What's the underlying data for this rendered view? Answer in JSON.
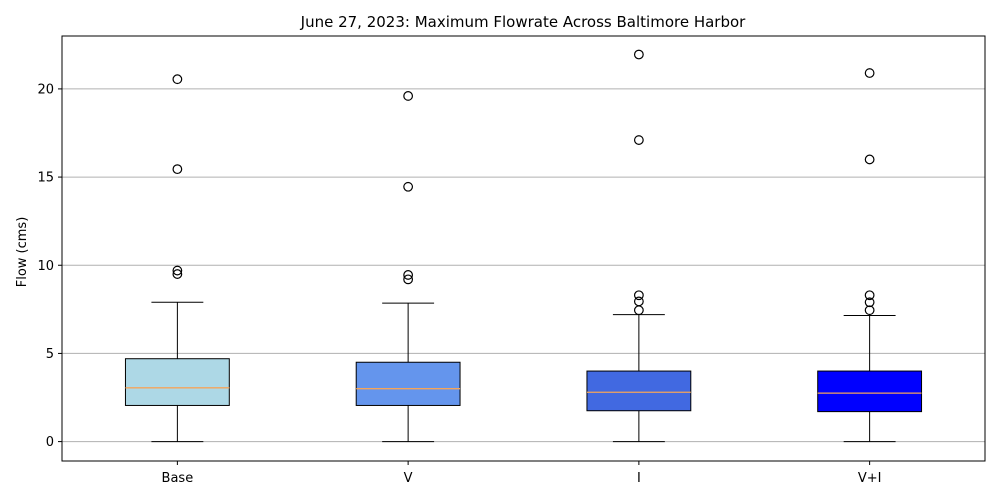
{
  "chart_data": {
    "type": "box",
    "title": "June 27, 2023: Maximum Flowrate Across Baltimore Harbor",
    "xlabel": "",
    "ylabel": "Flow (cms)",
    "ylim": [
      -1.1,
      23.0
    ],
    "yticks": [
      0,
      5,
      10,
      15,
      20
    ],
    "grid": "horizontal",
    "median_color": "#f5a55a",
    "categories": [
      "Base",
      "V",
      "I",
      "V+I"
    ],
    "boxes": [
      {
        "label": "Base",
        "color": "#add8e6",
        "whisker_low": 0.0,
        "q1": 2.05,
        "median": 3.05,
        "q3": 4.7,
        "whisker_high": 7.9,
        "outliers": [
          9.5,
          9.7,
          15.45,
          20.55
        ]
      },
      {
        "label": "V",
        "color": "#6495ed",
        "whisker_low": 0.0,
        "q1": 2.05,
        "median": 3.0,
        "q3": 4.5,
        "whisker_high": 7.85,
        "outliers": [
          9.2,
          9.45,
          14.45,
          19.6
        ]
      },
      {
        "label": "I",
        "color": "#4169e1",
        "whisker_low": 0.0,
        "q1": 1.75,
        "median": 2.8,
        "q3": 4.0,
        "whisker_high": 7.2,
        "outliers": [
          7.45,
          7.95,
          8.3,
          17.1,
          21.95
        ]
      },
      {
        "label": "V+I",
        "color": "#0000ff",
        "whisker_low": 0.0,
        "q1": 1.7,
        "median": 2.75,
        "q3": 4.0,
        "whisker_high": 7.15,
        "outliers": [
          7.45,
          7.9,
          8.3,
          16.0,
          20.9
        ]
      }
    ]
  }
}
